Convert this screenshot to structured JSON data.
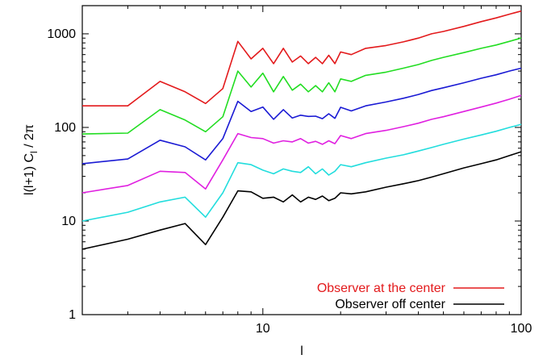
{
  "chart_data": {
    "type": "line",
    "title": "",
    "xlabel": "l",
    "ylabel": "l(l+1) C",
    "ylabel_sub": "l",
    "ylabel_tail": " / 2π",
    "xscale": "log",
    "yscale": "log",
    "xlim": [
      2,
      100
    ],
    "ylim": [
      1,
      2000
    ],
    "grid": false,
    "legend_position": "bottom-right",
    "x_ticks": [
      {
        "value": 10,
        "label": "10"
      },
      {
        "value": 100,
        "label": "100"
      }
    ],
    "y_ticks": [
      {
        "value": 1,
        "label": "1"
      },
      {
        "value": 10,
        "label": "10"
      },
      {
        "value": 100,
        "label": "100"
      },
      {
        "value": 1000,
        "label": "1000"
      }
    ],
    "legend": [
      {
        "label": "Observer at the center",
        "color": "#e31a1c"
      },
      {
        "label": "Observer off center",
        "color": "#000000"
      }
    ],
    "x": [
      2,
      3,
      4,
      5,
      6,
      7,
      8,
      9,
      10,
      11,
      12,
      13,
      14,
      15,
      16,
      17,
      18,
      19,
      20,
      22,
      25,
      30,
      35,
      40,
      45,
      50,
      60,
      70,
      80,
      90,
      100
    ],
    "series": [
      {
        "color": "#e31a1c",
        "values": [
          170,
          170,
          310,
          240,
          180,
          260,
          830,
          540,
          700,
          480,
          700,
          500,
          580,
          480,
          560,
          480,
          590,
          480,
          640,
          600,
          700,
          750,
          820,
          900,
          1000,
          1060,
          1200,
          1350,
          1480,
          1620,
          1750
        ]
      },
      {
        "color": "#22dd22",
        "values": [
          85,
          87,
          155,
          120,
          90,
          130,
          400,
          270,
          380,
          240,
          350,
          250,
          290,
          240,
          280,
          240,
          300,
          240,
          330,
          310,
          360,
          390,
          430,
          470,
          520,
          560,
          630,
          700,
          760,
          830,
          900
        ]
      },
      {
        "color": "#1a1ad4",
        "values": [
          41,
          46,
          73,
          62,
          45,
          76,
          190,
          148,
          165,
          122,
          155,
          126,
          135,
          131,
          132,
          124,
          140,
          125,
          164,
          150,
          170,
          187,
          205,
          225,
          248,
          265,
          300,
          335,
          365,
          400,
          430
        ]
      },
      {
        "color": "#e020e0",
        "values": [
          20,
          24,
          34,
          33,
          22,
          45,
          86,
          78,
          76,
          68,
          72,
          70,
          76,
          68,
          71,
          66,
          72,
          67,
          82,
          76,
          86,
          93,
          102,
          111,
          122,
          130,
          148,
          165,
          182,
          200,
          220
        ]
      },
      {
        "color": "#22dddd",
        "values": [
          10,
          12.4,
          16,
          18,
          11,
          20,
          42,
          40,
          35,
          32,
          36,
          34,
          33,
          38,
          32,
          36,
          31,
          34,
          40,
          38,
          42,
          47,
          51,
          56,
          61,
          66,
          75,
          83,
          91,
          100,
          108
        ]
      },
      {
        "color": "#000000",
        "values": [
          5,
          6.4,
          8,
          9.4,
          5.6,
          11,
          21,
          20.5,
          17.5,
          18,
          16,
          19,
          16,
          18,
          17,
          18.5,
          16.5,
          17.5,
          20,
          19.5,
          20.5,
          23,
          25,
          27,
          29.5,
          32,
          37,
          41,
          45,
          50,
          55
        ]
      }
    ]
  }
}
